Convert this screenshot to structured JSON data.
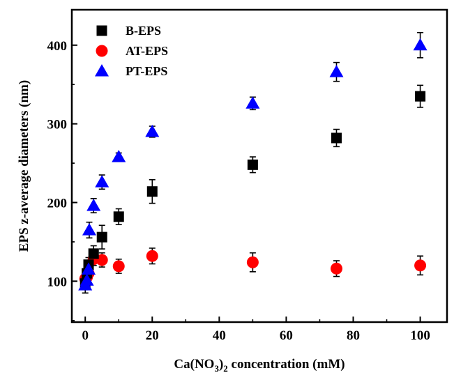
{
  "chart_data": {
    "type": "scatter",
    "title": "",
    "xlabel": {
      "base": "Ca(NO",
      "sub1": "3",
      "mid": ")",
      "sub2": "2",
      "rest": " concentration (mM)"
    },
    "ylabel": "EPS  z-average diameters (nm)",
    "xlim": [
      -4,
      108
    ],
    "ylim": [
      48,
      445
    ],
    "xticks": [
      "0",
      "20",
      "40",
      "60",
      "80",
      "100"
    ],
    "yticks": [
      "100",
      "200",
      "300",
      "400"
    ],
    "legend_position": "top-left",
    "grid": false,
    "series": [
      {
        "name": "B-EPS",
        "marker": "square",
        "color": "#000000",
        "points": [
          {
            "x": 0,
            "y": 97,
            "err": 12
          },
          {
            "x": 0.5,
            "y": 110,
            "err": 9
          },
          {
            "x": 1,
            "y": 121,
            "err": 9
          },
          {
            "x": 2.5,
            "y": 135,
            "err": 10
          },
          {
            "x": 5,
            "y": 156,
            "err": 15
          },
          {
            "x": 10,
            "y": 182,
            "err": 10
          },
          {
            "x": 20,
            "y": 214,
            "err": 15
          },
          {
            "x": 50,
            "y": 248,
            "err": 10
          },
          {
            "x": 75,
            "y": 282,
            "err": 11
          },
          {
            "x": 100,
            "y": 335,
            "err": 14
          }
        ]
      },
      {
        "name": "AT-EPS",
        "marker": "circle",
        "color": "#ff0000",
        "points": [
          {
            "x": 0,
            "y": 103,
            "err": 7
          },
          {
            "x": 0.5,
            "y": 105,
            "err": 6
          },
          {
            "x": 1,
            "y": 110,
            "err": 6
          },
          {
            "x": 2.5,
            "y": 128,
            "err": 8
          },
          {
            "x": 5,
            "y": 127,
            "err": 9
          },
          {
            "x": 10,
            "y": 119,
            "err": 9
          },
          {
            "x": 20,
            "y": 132,
            "err": 10
          },
          {
            "x": 50,
            "y": 124,
            "err": 12
          },
          {
            "x": 75,
            "y": 116,
            "err": 10
          },
          {
            "x": 100,
            "y": 120,
            "err": 12
          }
        ]
      },
      {
        "name": "PT-EPS",
        "marker": "triangle",
        "color": "#0000ff",
        "points": [
          {
            "x": 0,
            "y": 95,
            "err": 6
          },
          {
            "x": 0.5,
            "y": 101,
            "err": 6
          },
          {
            "x": 1,
            "y": 115,
            "err": 6
          },
          {
            "x": 1.2,
            "y": 165,
            "err": 10
          },
          {
            "x": 2.5,
            "y": 196,
            "err": 9
          },
          {
            "x": 5,
            "y": 226,
            "err": 9
          },
          {
            "x": 10,
            "y": 258,
            "err": 5
          },
          {
            "x": 20,
            "y": 290,
            "err": 7
          },
          {
            "x": 50,
            "y": 326,
            "err": 8
          },
          {
            "x": 75,
            "y": 366,
            "err": 12
          },
          {
            "x": 100,
            "y": 400,
            "err": 16
          }
        ]
      }
    ]
  }
}
